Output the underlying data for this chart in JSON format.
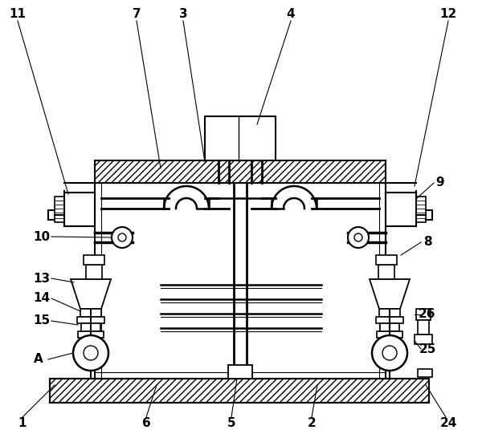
{
  "background_color": "#ffffff",
  "line_color": "#000000",
  "figsize": [
    5.95,
    5.46
  ],
  "dpi": 100
}
